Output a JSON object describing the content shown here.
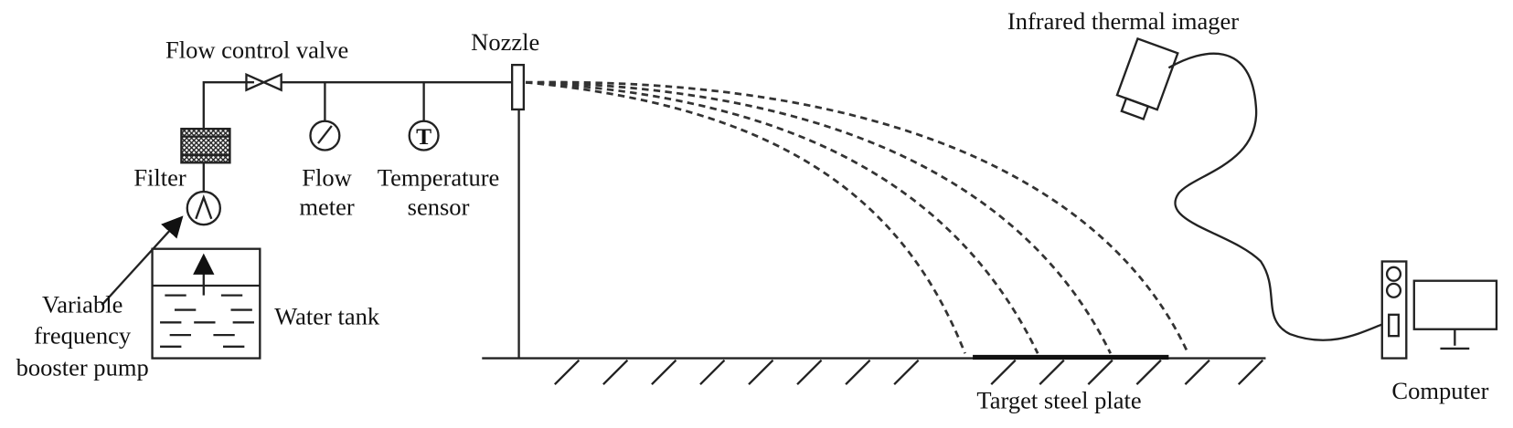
{
  "labels": {
    "flow_control_valve": "Flow control valve",
    "nozzle": "Nozzle",
    "infrared_thermal_imager": "Infrared thermal imager",
    "filter": "Filter",
    "flow_meter": [
      "Flow",
      "meter"
    ],
    "temperature_sensor": [
      "Temperature",
      "sensor"
    ],
    "pump": [
      "Variable",
      "frequency",
      "booster pump"
    ],
    "water_tank": "Water tank",
    "target_steel_plate": "Target steel plate",
    "computer": "Computer"
  }
}
